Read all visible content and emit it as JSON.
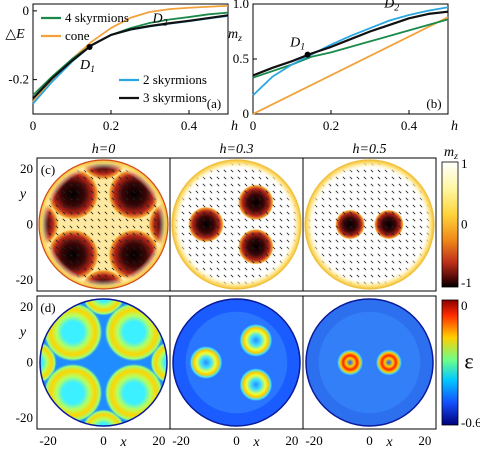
{
  "colors": {
    "sk4": "#1a8a4a",
    "cone": "#f3a23a",
    "sk2": "#2aa7e0",
    "sk3": "#111111"
  },
  "chart_data": [
    {
      "id": "a",
      "type": "line",
      "panel_label": "(a)",
      "xlabel": "h",
      "ylabel": "△E",
      "xlim": [
        0,
        0.5
      ],
      "ylim": [
        -0.3,
        0.02
      ],
      "xticks": [
        0,
        0.2,
        0.4
      ],
      "xtick_labels": [
        "0",
        "0.2",
        "0.4"
      ],
      "yticks": [
        0,
        -0.2
      ],
      "ytick_labels": [
        "0",
        "-0.2"
      ],
      "legend": [
        {
          "key": "sk4",
          "label": "4 skyrmions"
        },
        {
          "key": "cone",
          "label": "cone"
        },
        {
          "key": "sk2",
          "label": "2 skyrmions"
        },
        {
          "key": "sk3",
          "label": "3 skyrmions"
        }
      ],
      "series": [
        {
          "key": "cone",
          "name": "cone",
          "x": [
            0,
            0.05,
            0.1,
            0.15,
            0.2,
            0.25,
            0.3,
            0.35,
            0.4,
            0.45,
            0.5
          ],
          "y": [
            -0.265,
            -0.2,
            -0.14,
            -0.09,
            -0.05,
            -0.02,
            -0.003,
            0.005,
            0.009,
            0.012,
            0.015
          ]
        },
        {
          "key": "sk4",
          "name": "4 skyrmions",
          "x": [
            0,
            0.05,
            0.1,
            0.15,
            0.2,
            0.25,
            0.3,
            0.35,
            0.4,
            0.45,
            0.5
          ],
          "y": [
            -0.245,
            -0.19,
            -0.14,
            -0.1,
            -0.07,
            -0.05,
            -0.035,
            -0.025,
            -0.018,
            -0.01,
            -0.005
          ]
        },
        {
          "key": "sk2",
          "name": "2 skyrmions",
          "x": [
            0,
            0.05,
            0.1,
            0.15,
            0.2,
            0.25,
            0.3,
            0.35,
            0.4,
            0.45,
            0.5
          ],
          "y": [
            -0.27,
            -0.205,
            -0.148,
            -0.1,
            -0.07,
            -0.055,
            -0.045,
            -0.037,
            -0.03,
            -0.022,
            -0.015
          ]
        },
        {
          "key": "sk3",
          "name": "3 skyrmions",
          "x": [
            0,
            0.05,
            0.1,
            0.15,
            0.2,
            0.25,
            0.3,
            0.35,
            0.4,
            0.45,
            0.5
          ],
          "y": [
            -0.255,
            -0.195,
            -0.145,
            -0.1,
            -0.07,
            -0.054,
            -0.044,
            -0.036,
            -0.029,
            -0.021,
            -0.013
          ]
        }
      ],
      "annotations": [
        {
          "label": "D",
          "sub": "1",
          "x": 0.145,
          "y": -0.105,
          "marker": true
        },
        {
          "label": "D",
          "sub": "2",
          "x": 0.3,
          "y": -0.04,
          "marker": false
        }
      ]
    },
    {
      "id": "b",
      "type": "line",
      "panel_label": "(b)",
      "xlabel": "h",
      "ylabel": "m",
      "ylabel_sub": "z",
      "xlim": [
        0,
        0.5
      ],
      "ylim": [
        0,
        1.0
      ],
      "xticks": [
        0,
        0.2,
        0.4
      ],
      "xtick_labels": [
        "0",
        "0.2",
        "0.4"
      ],
      "yticks": [
        0,
        0.5,
        1.0
      ],
      "ytick_labels": [
        "0",
        "0.5",
        "1.0"
      ],
      "series": [
        {
          "key": "cone",
          "name": "cone",
          "x": [
            0,
            0.5
          ],
          "y": [
            0,
            0.88
          ]
        },
        {
          "key": "sk4",
          "name": "4 skyrmions",
          "x": [
            0,
            0.1,
            0.15,
            0.2,
            0.3,
            0.4,
            0.5
          ],
          "y": [
            0.33,
            0.45,
            0.52,
            0.56,
            0.66,
            0.76,
            0.86
          ]
        },
        {
          "key": "sk2",
          "name": "2 skyrmions",
          "x": [
            0,
            0.05,
            0.1,
            0.15,
            0.2,
            0.25,
            0.3,
            0.35,
            0.4,
            0.45,
            0.5
          ],
          "y": [
            0.17,
            0.34,
            0.45,
            0.54,
            0.63,
            0.71,
            0.78,
            0.85,
            0.9,
            0.94,
            0.97
          ]
        },
        {
          "key": "sk3",
          "name": "3 skyrmions",
          "x": [
            0,
            0.05,
            0.1,
            0.15,
            0.2,
            0.25,
            0.3,
            0.35,
            0.4,
            0.45,
            0.5
          ],
          "y": [
            0.35,
            0.42,
            0.48,
            0.55,
            0.61,
            0.68,
            0.75,
            0.81,
            0.87,
            0.91,
            0.93
          ]
        }
      ],
      "annotations": [
        {
          "label": "D",
          "sub": "1",
          "x": 0.14,
          "y": 0.54,
          "marker": true
        },
        {
          "label": "D",
          "sub": "2",
          "x": 0.34,
          "y": 0.84,
          "marker": false
        }
      ]
    },
    {
      "id": "maps",
      "type": "heatmap",
      "column_titles": [
        "h=0",
        "h=0.3",
        "h=0.5"
      ],
      "row_c_label": "(c)",
      "row_d_label": "(d)",
      "xlabel": "x",
      "ylabel": "y",
      "xticks": [
        -20,
        0,
        20
      ],
      "xtick_labels": [
        "-20",
        "0",
        "20"
      ],
      "yticks": [
        20,
        0,
        -20
      ],
      "ytick_labels": [
        "20",
        "0",
        "-20"
      ],
      "range": [
        -24,
        24
      ],
      "skyrmion_centers": [
        [
          [
            -11,
            11
          ],
          [
            11,
            11
          ],
          [
            -11,
            -11
          ],
          [
            11,
            -11
          ]
        ],
        [
          [
            -11,
            0
          ],
          [
            7,
            8
          ],
          [
            7,
            -8
          ]
        ],
        [
          [
            -7,
            0
          ],
          [
            7,
            0
          ]
        ]
      ],
      "colorbar_mz": {
        "label": "m",
        "label_sub": "z",
        "ticks": [
          1,
          0,
          -1
        ],
        "tick_labels": [
          "1",
          "0",
          "-1"
        ]
      },
      "colorbar_eps": {
        "label": "ε",
        "ticks": [
          0,
          -0.6
        ],
        "tick_labels": [
          "0",
          "-0.6"
        ]
      }
    }
  ]
}
